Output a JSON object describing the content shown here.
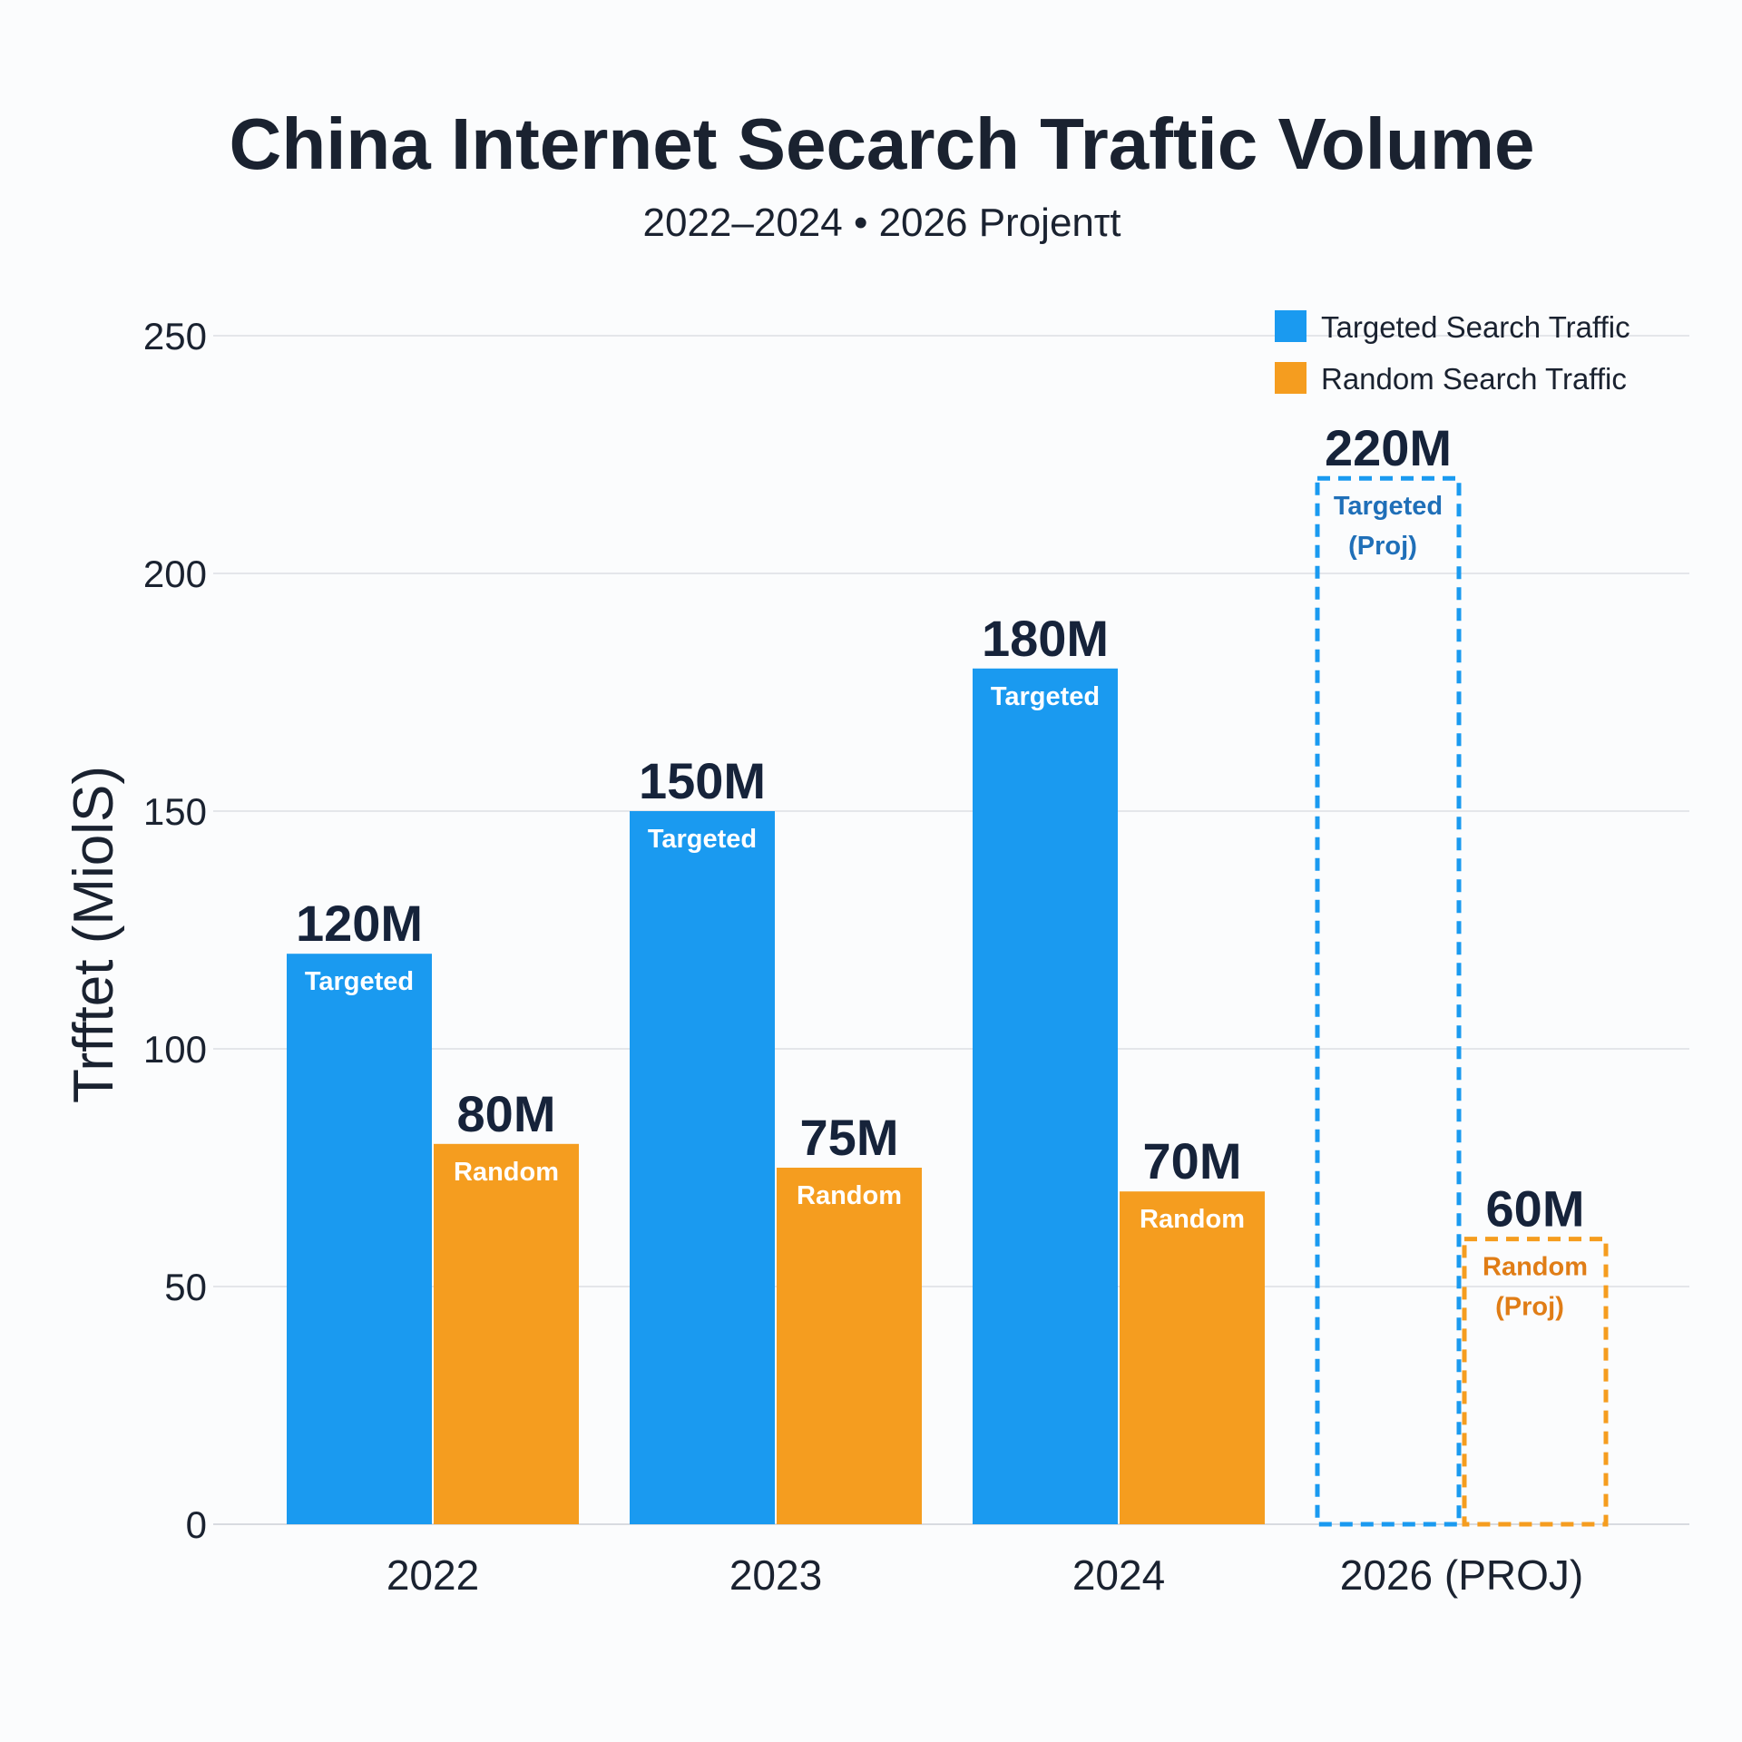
{
  "chart_data": {
    "type": "bar",
    "title": "China Internet Secarch Traftic Volume",
    "subtitle": "2022–2024 • 2026 Projenτt",
    "ylabel": "Trfftet (MiolS)",
    "xlabel": "",
    "ylim": [
      0,
      250
    ],
    "yticks": [
      "0",
      "50",
      "100",
      "150",
      "200",
      "250"
    ],
    "categories": [
      "2022",
      "2023",
      "2024",
      "2026 (PROJ)"
    ],
    "projected": [
      false,
      false,
      false,
      true
    ],
    "grid": true,
    "legend_position": "top-right",
    "series": [
      {
        "name": "Targeted Search Traffic",
        "color": "#1a9af0",
        "values": [
          120,
          150,
          180,
          220
        ],
        "value_labels": [
          "120M",
          "150M",
          "180M",
          "220M"
        ],
        "inner_labels": [
          "Targeted",
          "Targeted",
          "Targeted",
          "Targeted"
        ],
        "inner_sublabels": [
          "",
          "",
          "",
          "(Proj)"
        ]
      },
      {
        "name": "Random Search Traffic",
        "color": "#f59d1f",
        "values": [
          80,
          75,
          70,
          60
        ],
        "value_labels": [
          "80M",
          "75M",
          "70M",
          "60M"
        ],
        "inner_labels": [
          "Random",
          "Random",
          "Random",
          "Random"
        ],
        "inner_sublabels": [
          "",
          "",
          "",
          "(Proj)"
        ]
      }
    ]
  }
}
